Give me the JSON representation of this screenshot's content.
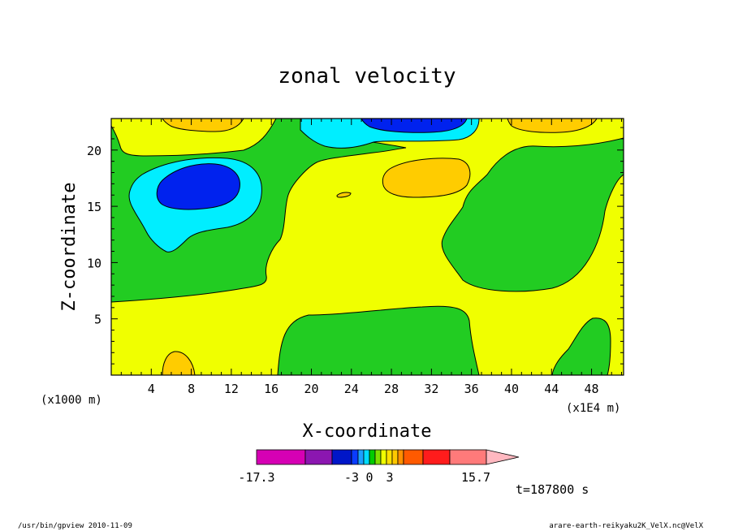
{
  "chart_data": {
    "type": "heatmap",
    "title": "zonal velocity",
    "xlabel": "X-coordinate",
    "ylabel": "Z-coordinate",
    "xunit_left": "(x1000 m)",
    "xunit_right": "(x1E4 m)",
    "x_ticks": [
      "4",
      "8",
      "12",
      "16",
      "20",
      "24",
      "28",
      "32",
      "36",
      "40",
      "44",
      "48"
    ],
    "y_ticks": [
      "5",
      "10",
      "15",
      "20"
    ],
    "xlim": [
      0,
      51.2
    ],
    "ylim": [
      0,
      22.8
    ],
    "time_label": "t=187800 s",
    "colorbar": {
      "labels": [
        "-17.3",
        "-3",
        "0",
        "3",
        "15.7"
      ],
      "range": [
        -17.3,
        15.7
      ],
      "colors": [
        "#d600b4",
        "#8b16b0",
        "#0016c8",
        "#0a3cff",
        "#1ca0ff",
        "#00dcff",
        "#00cc00",
        "#7ee000",
        "#f0ff00",
        "#ffe000",
        "#ffc800",
        "#ff9000",
        "#ff5a00",
        "#ff1c1c",
        "#ff7a7a",
        "#ffb8c0"
      ]
    },
    "levels": {
      "background_green": "#22cc22",
      "yellow": "#f0ff00",
      "orange": "#ffcc00",
      "cyan": "#00eeff",
      "blue": "#0022ee"
    }
  },
  "footer": {
    "left": "/usr/bin/gpview  2010-11-09",
    "right": "arare-earth-reikyaku2K_VelX.nc@VelX"
  }
}
